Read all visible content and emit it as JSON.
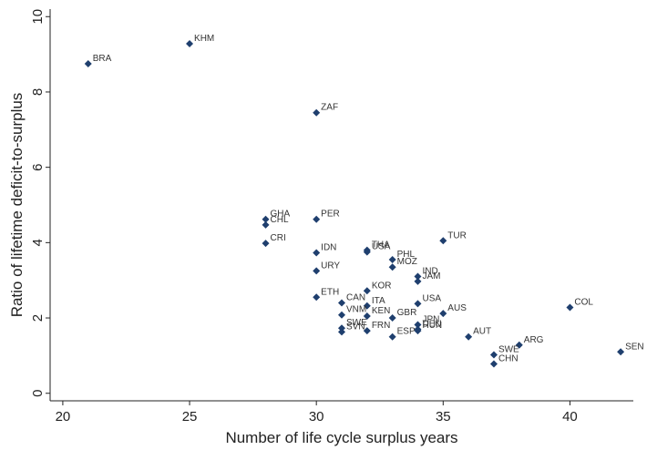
{
  "chart_data": {
    "type": "scatter",
    "xlabel": "Number of life cycle surplus years",
    "ylabel": "Ratio of lifetime deficit-to-surplus",
    "xlim": [
      19.5,
      42.5
    ],
    "ylim": [
      -0.2,
      10.2
    ],
    "xticks": [
      20,
      25,
      30,
      35,
      40
    ],
    "yticks": [
      0,
      2,
      4,
      6,
      8,
      10
    ],
    "grid": false,
    "marker_color": "#1f3f6e",
    "points": [
      {
        "label": "BRA",
        "x": 21,
        "y": 8.75
      },
      {
        "label": "KHM",
        "x": 25,
        "y": 9.28
      },
      {
        "label": "ZAF",
        "x": 30,
        "y": 7.45
      },
      {
        "label": "GHA",
        "x": 28,
        "y": 4.62
      },
      {
        "label": "CHL",
        "x": 28,
        "y": 4.47
      },
      {
        "label": "PER",
        "x": 30,
        "y": 4.62
      },
      {
        "label": "CRI",
        "x": 28,
        "y": 3.98
      },
      {
        "label": "IDN",
        "x": 30,
        "y": 3.73
      },
      {
        "label": "THA",
        "x": 32,
        "y": 3.8
      },
      {
        "label": "USA",
        "x": 32,
        "y": 3.75
      },
      {
        "label": "TUR",
        "x": 35,
        "y": 4.05
      },
      {
        "label": "PHL",
        "x": 33,
        "y": 3.55
      },
      {
        "label": "MOZ",
        "x": 33,
        "y": 3.35
      },
      {
        "label": "URY",
        "x": 30,
        "y": 3.25
      },
      {
        "label": "IND",
        "x": 34,
        "y": 3.1
      },
      {
        "label": "JAM",
        "x": 34,
        "y": 2.97
      },
      {
        "label": "KOR",
        "x": 32,
        "y": 2.72
      },
      {
        "label": "ETH",
        "x": 30,
        "y": 2.55
      },
      {
        "label": "CAN",
        "x": 31,
        "y": 2.4
      },
      {
        "label": "ITA",
        "x": 32,
        "y": 2.32
      },
      {
        "label": "USA",
        "x": 34,
        "y": 2.38
      },
      {
        "label": "VNM",
        "x": 31,
        "y": 2.08
      },
      {
        "label": "KEN",
        "x": 32,
        "y": 2.05
      },
      {
        "label": "GBR",
        "x": 33,
        "y": 2.0
      },
      {
        "label": "AUS",
        "x": 35,
        "y": 2.12
      },
      {
        "label": "JPN",
        "x": 34,
        "y": 1.82
      },
      {
        "label": "DEU",
        "x": 34,
        "y": 1.7
      },
      {
        "label": "HUN",
        "x": 34,
        "y": 1.66
      },
      {
        "label": "SWE",
        "x": 31,
        "y": 1.73
      },
      {
        "label": "SVN",
        "x": 31,
        "y": 1.63
      },
      {
        "label": "FRN",
        "x": 32,
        "y": 1.66
      },
      {
        "label": "ESP",
        "x": 33,
        "y": 1.5
      },
      {
        "label": "AUT",
        "x": 36,
        "y": 1.5
      },
      {
        "label": "COL",
        "x": 40,
        "y": 2.28
      },
      {
        "label": "ARG",
        "x": 38,
        "y": 1.28
      },
      {
        "label": "SWE",
        "x": 37,
        "y": 1.02
      },
      {
        "label": "CHN",
        "x": 37,
        "y": 0.78
      },
      {
        "label": "SEN",
        "x": 42,
        "y": 1.1
      }
    ]
  }
}
